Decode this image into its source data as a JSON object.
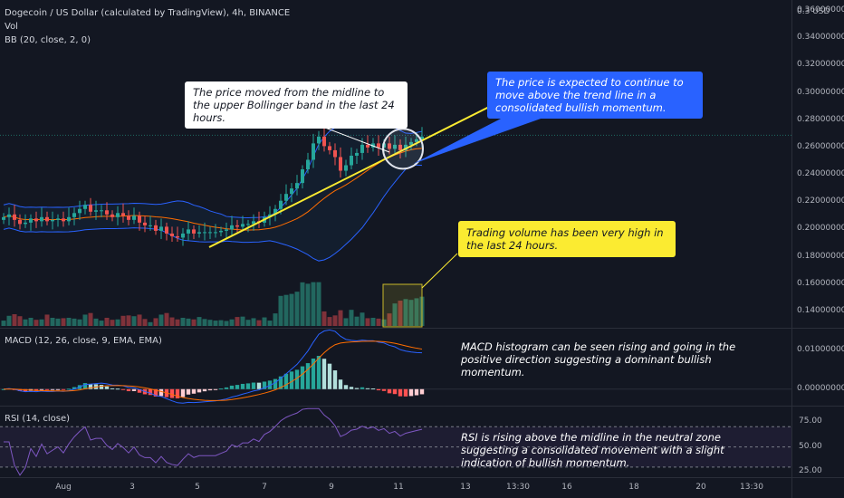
{
  "header": {
    "title": "Dogecoin / US Dollar (calculated by TradingView), 4h, BINANCE",
    "vol_label": "Vol",
    "bb_label": "BB (20, close, 2, 0)",
    "macd_label": "MACD (12, 26, close, 9, EMA, EMA)",
    "rsi_label": "RSI (14, close)"
  },
  "price_axis": {
    "top_label": "0.3",
    "unit": "USD",
    "ticks": [
      "0.36000000",
      "0.34000000",
      "0.32000000",
      "0.30000000",
      "0.28000000",
      "0.26000000",
      "0.24000000",
      "0.22000000",
      "0.20000000",
      "0.18000000",
      "0.16000000",
      "0.14000000"
    ],
    "current_price_line": 0.269
  },
  "macd_axis": {
    "ticks": [
      "0.01000000",
      "0.00000000"
    ]
  },
  "rsi_axis": {
    "ticks": [
      "75.00",
      "50.00",
      "25.00"
    ]
  },
  "time_axis": {
    "labels": [
      "Aug",
      "3",
      "5",
      "7",
      "9",
      "11",
      "13",
      "13:30",
      "16",
      "18",
      "20",
      "13:30"
    ]
  },
  "annotations": {
    "midline": "The price moved from the midline to the upper Bollinger band in the last 24 hours.",
    "trend": "The price is expected to continue to move above the trend line in a consolidated bullish momentum.",
    "volume": "Trading volume has been very high in the last 24 hours.",
    "macd": "MACD histogram can be seen rising and going in the positive direction suggesting a dominant bullish momentum.",
    "rsi": "RSI is rising above the midline in the neutral zone suggesting a consolidated movement with a slight indication of bullish momentum."
  },
  "colors": {
    "up": "#26a69a",
    "down": "#ef5350",
    "vol_up": "#22675f",
    "vol_down": "#7f323a",
    "bb_band": "#2962ff",
    "bb_basis": "#ff6d00",
    "trend_line": "#fbeb31",
    "macd_line": "#2962ff",
    "signal_line": "#ff6d00",
    "rsi_line": "#7e57c2"
  },
  "chart_data": {
    "type": "candlestick",
    "title": "Dogecoin / US Dollar (calculated by TradingView), 4h, BINANCE",
    "x_start": "Aug 1",
    "price_range": [
      0.128,
      0.368
    ],
    "closes": [
      0.209,
      0.211,
      0.207,
      0.204,
      0.205,
      0.208,
      0.206,
      0.209,
      0.206,
      0.207,
      0.208,
      0.206,
      0.209,
      0.212,
      0.215,
      0.218,
      0.213,
      0.214,
      0.214,
      0.211,
      0.209,
      0.212,
      0.21,
      0.207,
      0.21,
      0.205,
      0.203,
      0.203,
      0.199,
      0.202,
      0.197,
      0.195,
      0.194,
      0.197,
      0.2,
      0.197,
      0.198,
      0.198,
      0.198,
      0.198,
      0.199,
      0.2,
      0.203,
      0.202,
      0.204,
      0.204,
      0.206,
      0.205,
      0.209,
      0.211,
      0.215,
      0.221,
      0.226,
      0.23,
      0.234,
      0.244,
      0.251,
      0.263,
      0.268,
      0.261,
      0.258,
      0.253,
      0.243,
      0.247,
      0.254,
      0.256,
      0.262,
      0.26,
      0.263,
      0.26,
      0.263,
      0.259,
      0.262,
      0.258,
      0.262,
      0.264,
      0.266,
      0.268
    ],
    "annotated_points": {
      "midline": 0.259,
      "upper_band_last": 0.271,
      "lower_band_min": 0.178
    },
    "volume_bars": 78,
    "macd_range": [
      -0.004,
      0.0155
    ],
    "rsi_range": [
      20,
      90
    ],
    "rsi_levels": [
      70,
      50,
      30
    ],
    "trend_line_start": 0.187,
    "trend_line_end": 0.303,
    "grid": false
  }
}
